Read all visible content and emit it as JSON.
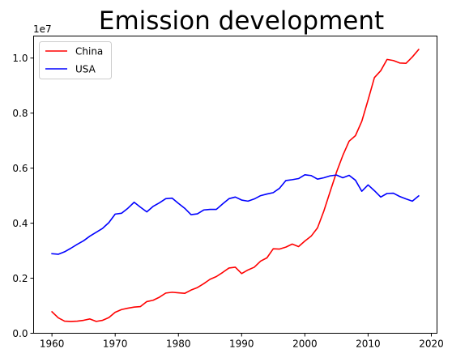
{
  "chart_data": {
    "type": "line",
    "title": "Emission development",
    "xlabel": "",
    "ylabel": "",
    "y_offset_label": "1e7",
    "xlim": [
      1957.1,
      2020.9
    ],
    "ylim": [
      0,
      10800000
    ],
    "x_ticks": [
      1960,
      1970,
      1980,
      1990,
      2000,
      2010,
      2020
    ],
    "x_tick_labels": [
      "1960",
      "1970",
      "1980",
      "1990",
      "2000",
      "2010",
      "2020"
    ],
    "y_ticks": [
      0,
      2000000,
      4000000,
      6000000,
      8000000,
      10000000
    ],
    "y_tick_labels": [
      "0.0",
      "0.2",
      "0.4",
      "0.6",
      "0.8",
      "1.0"
    ],
    "grid": false,
    "legend_position": "top-left",
    "x": [
      1960,
      1961,
      1962,
      1963,
      1964,
      1965,
      1966,
      1967,
      1968,
      1969,
      1970,
      1971,
      1972,
      1973,
      1974,
      1975,
      1976,
      1977,
      1978,
      1979,
      1980,
      1981,
      1982,
      1983,
      1984,
      1985,
      1986,
      1987,
      1988,
      1989,
      1990,
      1991,
      1992,
      1993,
      1994,
      1995,
      1996,
      1997,
      1998,
      1999,
      2000,
      2001,
      2002,
      2003,
      2004,
      2005,
      2006,
      2007,
      2008,
      2009,
      2010,
      2011,
      2012,
      2013,
      2014,
      2015,
      2016,
      2017,
      2018
    ],
    "series": [
      {
        "name": "China",
        "color": "#ff0000",
        "values": [
          780000,
          560000,
          440000,
          430000,
          440000,
          470000,
          520000,
          430000,
          470000,
          570000,
          760000,
          860000,
          910000,
          950000,
          970000,
          1150000,
          1200000,
          1310000,
          1460000,
          1490000,
          1470000,
          1450000,
          1570000,
          1660000,
          1800000,
          1960000,
          2060000,
          2210000,
          2370000,
          2400000,
          2170000,
          2300000,
          2400000,
          2620000,
          2740000,
          3070000,
          3060000,
          3130000,
          3240000,
          3150000,
          3350000,
          3530000,
          3830000,
          4440000,
          5150000,
          5850000,
          6460000,
          6980000,
          7180000,
          7700000,
          8480000,
          9290000,
          9540000,
          9950000,
          9910000,
          9820000,
          9810000,
          10040000,
          10310000
        ]
      },
      {
        "name": "USA",
        "color": "#0000ff",
        "values": [
          2890000,
          2870000,
          2960000,
          3090000,
          3230000,
          3360000,
          3530000,
          3670000,
          3810000,
          4020000,
          4330000,
          4360000,
          4540000,
          4760000,
          4580000,
          4410000,
          4610000,
          4740000,
          4890000,
          4910000,
          4720000,
          4540000,
          4310000,
          4340000,
          4480000,
          4500000,
          4500000,
          4700000,
          4890000,
          4950000,
          4840000,
          4800000,
          4880000,
          5000000,
          5060000,
          5110000,
          5270000,
          5550000,
          5580000,
          5620000,
          5760000,
          5730000,
          5600000,
          5650000,
          5720000,
          5750000,
          5650000,
          5740000,
          5560000,
          5160000,
          5390000,
          5180000,
          4950000,
          5080000,
          5090000,
          4970000,
          4880000,
          4800000,
          4990000
        ]
      }
    ]
  }
}
